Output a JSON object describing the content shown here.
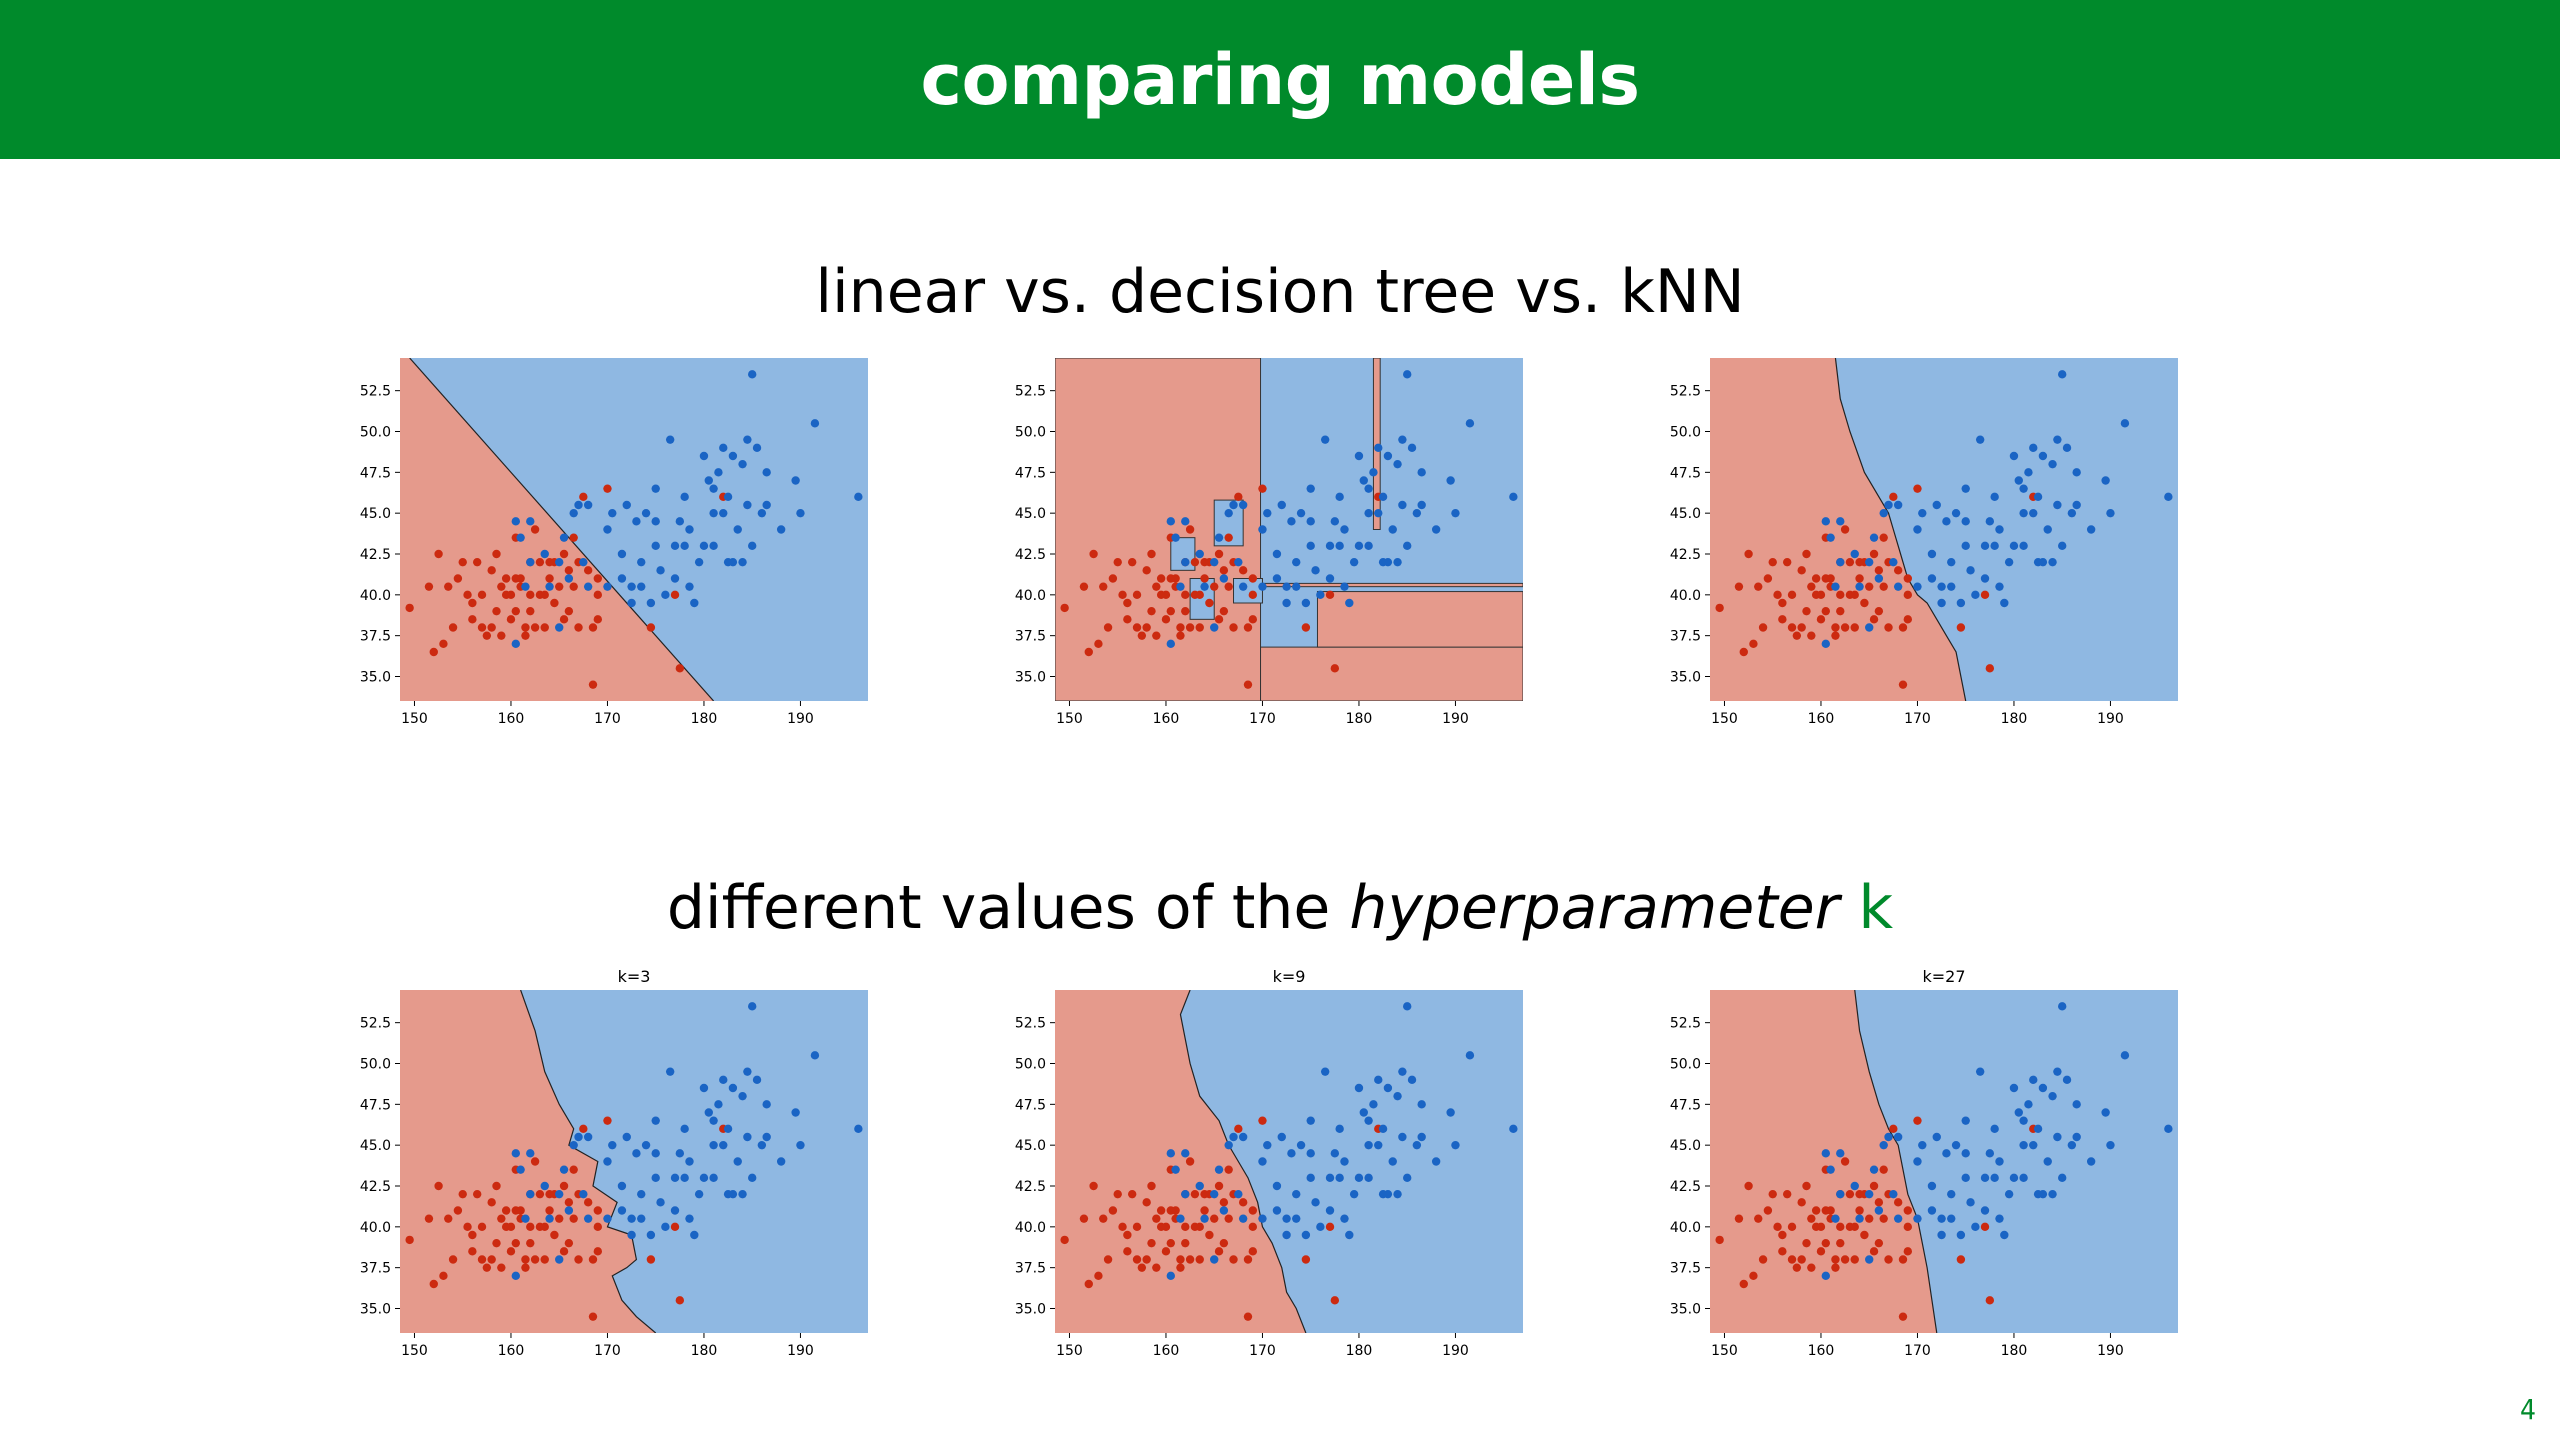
{
  "slide": {
    "title": "comparing models",
    "page_number": "4",
    "section_1": "linear vs. decision tree vs. kNN",
    "section_2": {
      "prefix": "different values of the ",
      "emphasis": "hyperparameter",
      "suffix": " ",
      "highlight": "k"
    }
  },
  "colors": {
    "header_bg": "#008a2b",
    "red_region": "#e59a8c",
    "blue_region": "#8fb8e2",
    "red_points": "#cc2a10",
    "blue_points": "#1a64c4",
    "highlight": "#008a2b"
  },
  "chart_data": [
    {
      "type": "scatter",
      "model": "linear",
      "title": "",
      "xlim": [
        148.5,
        197
      ],
      "ylim": [
        33.5,
        54.5
      ],
      "xticks": [
        150,
        160,
        170,
        180,
        190
      ],
      "yticks": [
        35.0,
        37.5,
        40.0,
        42.5,
        45.0,
        47.5,
        50.0,
        52.5
      ],
      "boundary": {
        "kind": "line",
        "points": [
          [
            149.5,
            54.5
          ],
          [
            181,
            33.5
          ]
        ]
      }
    },
    {
      "type": "scatter",
      "model": "decision tree",
      "title": "",
      "xlim": [
        148.5,
        197
      ],
      "ylim": [
        33.5,
        54.5
      ],
      "xticks": [
        150,
        160,
        170,
        180,
        190
      ],
      "yticks": [
        35.0,
        37.5,
        40.0,
        42.5,
        45.0,
        47.5,
        50.0,
        52.5
      ],
      "boundary": {
        "kind": "regions",
        "red_rects": [
          [
            148.5,
            33.5,
            169.8,
            54.5
          ],
          [
            169.8,
            33.5,
            197,
            36.8
          ],
          [
            175.7,
            36.8,
            197,
            40.2
          ],
          [
            181.5,
            44,
            182.2,
            54.5
          ],
          [
            169.8,
            40.5,
            197,
            40.7
          ]
        ],
        "blue_rects": [
          [
            162.5,
            38.5,
            165,
            41
          ],
          [
            160.5,
            41.5,
            163,
            43.5
          ],
          [
            165,
            43,
            168,
            45.8
          ],
          [
            167,
            39.5,
            170,
            41
          ]
        ]
      }
    },
    {
      "type": "scatter",
      "model": "kNN",
      "title": "",
      "xlim": [
        148.5,
        197
      ],
      "ylim": [
        33.5,
        54.5
      ],
      "xticks": [
        150,
        160,
        170,
        180,
        190
      ],
      "yticks": [
        35.0,
        37.5,
        40.0,
        42.5,
        45.0,
        47.5,
        50.0,
        52.5
      ],
      "boundary": {
        "kind": "curve",
        "points": [
          [
            161.5,
            54.5
          ],
          [
            162,
            52
          ],
          [
            163,
            50
          ],
          [
            164.5,
            47.5
          ],
          [
            166,
            46
          ],
          [
            167,
            45
          ],
          [
            167.5,
            44
          ],
          [
            168,
            43
          ],
          [
            168.5,
            42
          ],
          [
            169,
            41
          ],
          [
            170,
            40
          ],
          [
            171,
            39.5
          ],
          [
            172,
            38.5
          ],
          [
            173,
            37.5
          ],
          [
            174,
            36.5
          ],
          [
            174.5,
            35
          ],
          [
            175,
            33.5
          ]
        ]
      }
    },
    {
      "type": "scatter",
      "model": "kNN",
      "title": "k=3",
      "xlim": [
        148.5,
        197
      ],
      "ylim": [
        33.5,
        54.5
      ],
      "xticks": [
        150,
        160,
        170,
        180,
        190
      ],
      "yticks": [
        35.0,
        37.5,
        40.0,
        42.5,
        45.0,
        47.5,
        50.0,
        52.5
      ],
      "boundary": {
        "kind": "curve",
        "points": [
          [
            161,
            54.5
          ],
          [
            162.5,
            52
          ],
          [
            163.5,
            49.5
          ],
          [
            165,
            47.5
          ],
          [
            166.5,
            46
          ],
          [
            166,
            45
          ],
          [
            169,
            44
          ],
          [
            168.5,
            42.5
          ],
          [
            171,
            41.5
          ],
          [
            170,
            40
          ],
          [
            172.5,
            39.5
          ],
          [
            173,
            38
          ],
          [
            172,
            37.5
          ],
          [
            170.5,
            37
          ],
          [
            171.5,
            35.5
          ],
          [
            173,
            34.5
          ],
          [
            175,
            33.5
          ]
        ]
      }
    },
    {
      "type": "scatter",
      "model": "kNN",
      "title": "k=9",
      "xlim": [
        148.5,
        197
      ],
      "ylim": [
        33.5,
        54.5
      ],
      "xticks": [
        150,
        160,
        170,
        180,
        190
      ],
      "yticks": [
        35.0,
        37.5,
        40.0,
        42.5,
        45.0,
        47.5,
        50.0,
        52.5
      ],
      "boundary": {
        "kind": "curve",
        "points": [
          [
            162.5,
            54.5
          ],
          [
            161.5,
            53
          ],
          [
            162.5,
            50
          ],
          [
            163.5,
            48
          ],
          [
            165.5,
            46.5
          ],
          [
            166.5,
            45
          ],
          [
            167.5,
            44
          ],
          [
            168.5,
            43
          ],
          [
            169.5,
            41.5
          ],
          [
            170,
            40
          ],
          [
            171,
            39
          ],
          [
            172,
            37.5
          ],
          [
            172.5,
            36
          ],
          [
            173.5,
            35
          ],
          [
            174.5,
            33.5
          ]
        ]
      }
    },
    {
      "type": "scatter",
      "model": "kNN",
      "title": "k=27",
      "xlim": [
        148.5,
        197
      ],
      "ylim": [
        33.5,
        54.5
      ],
      "xticks": [
        150,
        160,
        170,
        180,
        190
      ],
      "yticks": [
        35.0,
        37.5,
        40.0,
        42.5,
        45.0,
        47.5,
        50.0,
        52.5
      ],
      "boundary": {
        "kind": "curve",
        "points": [
          [
            163.5,
            54.5
          ],
          [
            164,
            52
          ],
          [
            165,
            49.5
          ],
          [
            166,
            47.5
          ],
          [
            167,
            46
          ],
          [
            168,
            45
          ],
          [
            168.5,
            43.5
          ],
          [
            169,
            42
          ],
          [
            170,
            40.5
          ],
          [
            170.5,
            39
          ],
          [
            171,
            37.5
          ],
          [
            171.5,
            35.5
          ],
          [
            172,
            33.5
          ]
        ]
      }
    }
  ],
  "points": {
    "red": [
      [
        149.5,
        39.2
      ],
      [
        151.5,
        40.5
      ],
      [
        152,
        36.5
      ],
      [
        152.5,
        42.5
      ],
      [
        153,
        37
      ],
      [
        153.5,
        40.5
      ],
      [
        154,
        38
      ],
      [
        154.5,
        41
      ],
      [
        155,
        42
      ],
      [
        155.5,
        40
      ],
      [
        156,
        38.5
      ],
      [
        156,
        39.5
      ],
      [
        156.5,
        42
      ],
      [
        157,
        40
      ],
      [
        157,
        38
      ],
      [
        157.5,
        37.5
      ],
      [
        158,
        41.5
      ],
      [
        158,
        38
      ],
      [
        158.5,
        39
      ],
      [
        158.5,
        42.5
      ],
      [
        159,
        40.5
      ],
      [
        159,
        37.5
      ],
      [
        159.5,
        41
      ],
      [
        159.5,
        40
      ],
      [
        160,
        38.5
      ],
      [
        160,
        40
      ],
      [
        160.5,
        41
      ],
      [
        160.5,
        43.5
      ],
      [
        160.5,
        39
      ],
      [
        161,
        40.5
      ],
      [
        161,
        41
      ],
      [
        161.5,
        38
      ],
      [
        161.5,
        37.5
      ],
      [
        162,
        40
      ],
      [
        162,
        42
      ],
      [
        162,
        39
      ],
      [
        162.5,
        44
      ],
      [
        162.5,
        38
      ],
      [
        163,
        40
      ],
      [
        163,
        42
      ],
      [
        163.5,
        40
      ],
      [
        163.5,
        38
      ],
      [
        164,
        41
      ],
      [
        164,
        42
      ],
      [
        164.5,
        42
      ],
      [
        164.5,
        39.5
      ],
      [
        165,
        40.5
      ],
      [
        165.5,
        38.5
      ],
      [
        165.5,
        42.5
      ],
      [
        166,
        41.5
      ],
      [
        166,
        39
      ],
      [
        166.5,
        43.5
      ],
      [
        166.5,
        40.5
      ],
      [
        167,
        42
      ],
      [
        167,
        38
      ],
      [
        167.5,
        46
      ],
      [
        168,
        41.5
      ],
      [
        168.5,
        38
      ],
      [
        169,
        41
      ],
      [
        169,
        40
      ],
      [
        169,
        38.5
      ],
      [
        170,
        46.5
      ],
      [
        174.5,
        38
      ],
      [
        177.5,
        35.5
      ],
      [
        177,
        40
      ],
      [
        182,
        46
      ],
      [
        168.5,
        34.5
      ]
    ],
    "blue": [
      [
        160.5,
        44.5
      ],
      [
        160.5,
        37
      ],
      [
        161,
        43.5
      ],
      [
        161.5,
        40.5
      ],
      [
        162,
        42
      ],
      [
        162,
        44.5
      ],
      [
        163.5,
        42.5
      ],
      [
        164,
        40.5
      ],
      [
        165,
        38
      ],
      [
        165,
        42
      ],
      [
        165.5,
        43.5
      ],
      [
        166.5,
        45
      ],
      [
        166,
        41
      ],
      [
        167,
        45.5
      ],
      [
        167.5,
        42
      ],
      [
        168,
        45.5
      ],
      [
        168,
        40.5
      ],
      [
        170,
        40.5
      ],
      [
        170,
        44
      ],
      [
        170.5,
        45
      ],
      [
        171.5,
        42.5
      ],
      [
        171.5,
        41
      ],
      [
        172,
        45.5
      ],
      [
        172.5,
        40.5
      ],
      [
        172.5,
        39.5
      ],
      [
        173,
        44.5
      ],
      [
        173.5,
        42
      ],
      [
        173.5,
        40.5
      ],
      [
        174,
        45
      ],
      [
        174.5,
        39.5
      ],
      [
        175,
        44.5
      ],
      [
        175,
        43
      ],
      [
        175,
        46.5
      ],
      [
        175.5,
        41.5
      ],
      [
        176,
        40
      ],
      [
        176.5,
        49.5
      ],
      [
        177,
        41
      ],
      [
        177,
        43
      ],
      [
        177.5,
        44.5
      ],
      [
        178,
        43
      ],
      [
        178,
        46
      ],
      [
        178.5,
        44
      ],
      [
        178.5,
        40.5
      ],
      [
        179,
        39.5
      ],
      [
        179.5,
        42
      ],
      [
        180,
        43
      ],
      [
        180,
        48.5
      ],
      [
        180.5,
        47
      ],
      [
        181,
        45
      ],
      [
        181,
        43
      ],
      [
        181,
        46.5
      ],
      [
        181.5,
        47.5
      ],
      [
        182,
        49
      ],
      [
        182,
        45
      ],
      [
        182.5,
        46
      ],
      [
        183,
        48.5
      ],
      [
        183,
        42
      ],
      [
        183.5,
        44
      ],
      [
        184,
        48
      ],
      [
        184,
        42
      ],
      [
        184.5,
        49.5
      ],
      [
        184.5,
        45.5
      ],
      [
        185,
        43
      ],
      [
        185,
        53.5
      ],
      [
        185.5,
        49
      ],
      [
        186,
        45
      ],
      [
        186.5,
        45.5
      ],
      [
        186.5,
        47.5
      ],
      [
        188,
        44
      ],
      [
        189.5,
        47
      ],
      [
        190,
        45
      ],
      [
        191.5,
        50.5
      ],
      [
        196,
        46
      ],
      [
        182.5,
        42
      ]
    ]
  }
}
